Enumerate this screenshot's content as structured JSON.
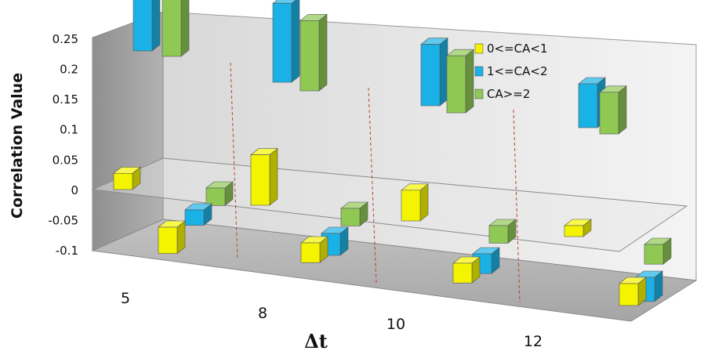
{
  "chart_data": {
    "type": "bar",
    "subtype": "3d-bar",
    "xlabel": "Δt",
    "ylabel": "Correlation Value",
    "ylim": [
      -0.1,
      0.25
    ],
    "yticks": [
      "0.25",
      "0.2",
      "0.15",
      "0.1",
      "0.05",
      "0",
      "-0.05",
      "-0.1"
    ],
    "categories": [
      "5",
      "8",
      "10",
      "12"
    ],
    "legend_position": "top-right",
    "series": [
      {
        "name": "0<=CA<1",
        "color": "#f4f400",
        "values": [
          0.037,
          0.115,
          0.07,
          0.025
        ],
        "minus": [
          -0.06,
          -0.045,
          -0.045,
          -0.05
        ]
      },
      {
        "name": "1<=CA<2",
        "color": "#1ab2e6",
        "values": [
          0.23,
          0.18,
          0.14,
          0.1
        ],
        "minus": [
          -0.035,
          -0.05,
          -0.045,
          -0.055
        ]
      },
      {
        "name": "CA>=2",
        "color": "#8fc853",
        "values": [
          0.22,
          0.16,
          0.13,
          0.095
        ],
        "minus": [
          -0.04,
          -0.04,
          -0.04,
          -0.045
        ]
      }
    ]
  }
}
